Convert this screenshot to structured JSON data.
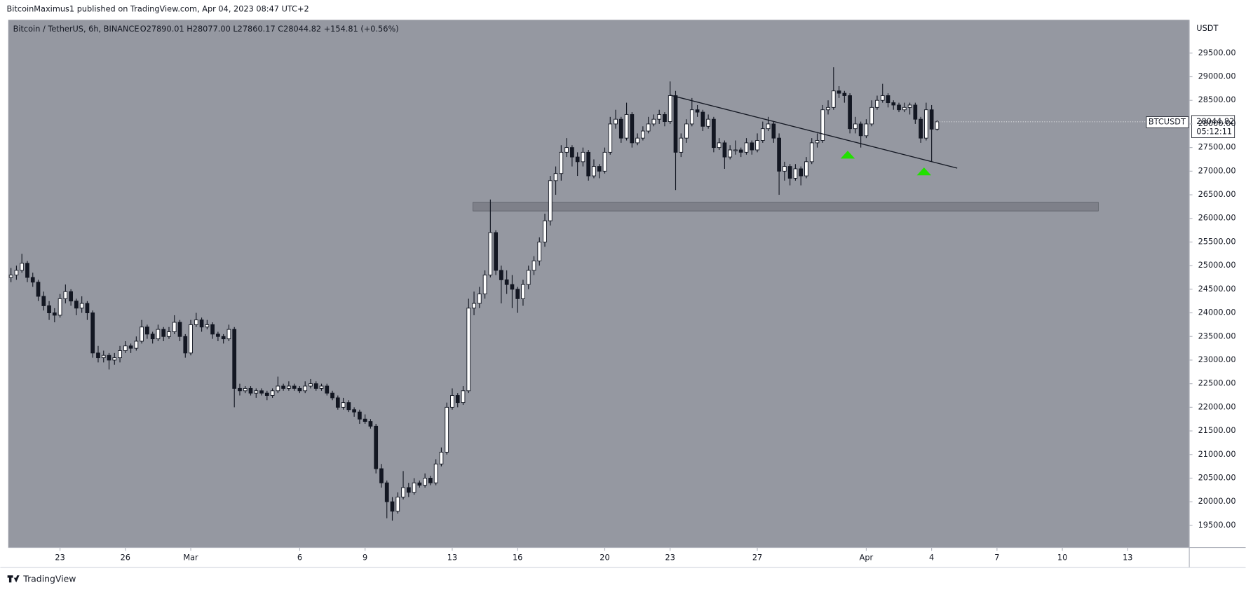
{
  "header": {
    "publisher": "BitcoinMaximus1 published on TradingView.com, Apr 04, 2023 08:47 UTC+2"
  },
  "footer": {
    "brand": "TradingView"
  },
  "chart_data": {
    "type": "candlestick",
    "title": "Bitcoin / TetherUS, 6h, BINANCE",
    "ohlc_text": "O27890.01 H28077.00 L27860.17 C28044.82 +154.81 (+0.56%)",
    "y_axis_label": "USDT",
    "symbol_tag": "BTCUSDT",
    "last_price": {
      "value": 28044.82,
      "label": "28044.82"
    },
    "countdown": "05:12:11",
    "up_color": "#ffffff",
    "down_color": "#131722",
    "background": "#9598a1",
    "xlim": [
      -0.5,
      216.3
    ],
    "ylim": [
      19030,
      30255
    ],
    "xticks": [
      {
        "value": 9,
        "label": "23"
      },
      {
        "value": 21,
        "label": "26"
      },
      {
        "value": 33,
        "label": "Mar"
      },
      {
        "value": 53,
        "label": "6"
      },
      {
        "value": 65,
        "label": "9"
      },
      {
        "value": 81,
        "label": "13"
      },
      {
        "value": 93,
        "label": "16"
      },
      {
        "value": 109,
        "label": "20"
      },
      {
        "value": 121,
        "label": "23"
      },
      {
        "value": 137,
        "label": "27"
      },
      {
        "value": 157,
        "label": "Apr"
      },
      {
        "value": 169,
        "label": "4"
      },
      {
        "value": 181,
        "label": "7"
      },
      {
        "value": 193,
        "label": "10"
      },
      {
        "value": 205,
        "label": "13"
      }
    ],
    "yticks": [
      {
        "value": 19500,
        "label": "19500.00"
      },
      {
        "value": 20000,
        "label": "20000.00"
      },
      {
        "value": 20500,
        "label": "20500.00"
      },
      {
        "value": 21000,
        "label": "21000.00"
      },
      {
        "value": 21500,
        "label": "21500.00"
      },
      {
        "value": 22000,
        "label": "22000.00"
      },
      {
        "value": 22500,
        "label": "22500.00"
      },
      {
        "value": 23000,
        "label": "23000.00"
      },
      {
        "value": 23500,
        "label": "23500.00"
      },
      {
        "value": 24000,
        "label": "24000.00"
      },
      {
        "value": 24500,
        "label": "24500.00"
      },
      {
        "value": 25000,
        "label": "25000.00"
      },
      {
        "value": 25500,
        "label": "25500.00"
      },
      {
        "value": 26000,
        "label": "26000.00"
      },
      {
        "value": 26500,
        "label": "26500.00"
      },
      {
        "value": 27000,
        "label": "27000.00"
      },
      {
        "value": 27500,
        "label": "27500.00"
      },
      {
        "value": 28000,
        "label": "28000.00"
      },
      {
        "value": 28500,
        "label": "28500.00"
      },
      {
        "value": 29000,
        "label": "29000.00"
      },
      {
        "value": 29500,
        "label": "29500.00"
      }
    ],
    "trendline": {
      "x": [
        121,
        173.7
      ],
      "y": [
        28610,
        27064
      ],
      "color": "#131722"
    },
    "zone": {
      "x": [
        84.8,
        199.6
      ],
      "y": [
        26157,
        26342
      ],
      "color": "#6b6e76"
    },
    "markers": {
      "x": [
        153.6,
        167.6
      ],
      "y": [
        27434,
        27080
      ],
      "color": "#22e000"
    },
    "candles": [
      [
        24750,
        24950,
        24650,
        24800
      ],
      [
        24800,
        25000,
        24700,
        24900
      ],
      [
        24900,
        25250,
        24850,
        25050
      ],
      [
        25050,
        25100,
        24650,
        24750
      ],
      [
        24750,
        24850,
        24550,
        24650
      ],
      [
        24650,
        24700,
        24250,
        24350
      ],
      [
        24350,
        24450,
        24050,
        24150
      ],
      [
        24150,
        24250,
        23850,
        24000
      ],
      [
        24000,
        24100,
        23800,
        23950
      ],
      [
        23950,
        24400,
        23900,
        24300
      ],
      [
        24300,
        24600,
        24200,
        24450
      ],
      [
        24450,
        24500,
        24150,
        24250
      ],
      [
        24250,
        24300,
        23950,
        24100
      ],
      [
        24100,
        24350,
        24000,
        24200
      ],
      [
        24200,
        24250,
        23850,
        24000
      ],
      [
        24000,
        24050,
        23050,
        23150
      ],
      [
        23150,
        23300,
        22950,
        23050
      ],
      [
        23050,
        23200,
        22950,
        23100
      ],
      [
        23100,
        23150,
        22800,
        23000
      ],
      [
        23000,
        23150,
        22900,
        23050
      ],
      [
        23050,
        23300,
        22950,
        23200
      ],
      [
        23200,
        23400,
        23150,
        23300
      ],
      [
        23300,
        23350,
        23150,
        23250
      ],
      [
        23250,
        23500,
        23200,
        23400
      ],
      [
        23400,
        23850,
        23350,
        23700
      ],
      [
        23700,
        23750,
        23450,
        23550
      ],
      [
        23550,
        23600,
        23350,
        23450
      ],
      [
        23450,
        23750,
        23400,
        23650
      ],
      [
        23650,
        23700,
        23400,
        23500
      ],
      [
        23500,
        23700,
        23450,
        23600
      ],
      [
        23600,
        23950,
        23550,
        23800
      ],
      [
        23800,
        23850,
        23400,
        23500
      ],
      [
        23500,
        23550,
        23050,
        23150
      ],
      [
        23150,
        23850,
        23100,
        23750
      ],
      [
        23750,
        24000,
        23700,
        23850
      ],
      [
        23850,
        23900,
        23600,
        23700
      ],
      [
        23700,
        23850,
        23650,
        23750
      ],
      [
        23750,
        23800,
        23450,
        23550
      ],
      [
        23550,
        23600,
        23400,
        23500
      ],
      [
        23500,
        23550,
        23350,
        23450
      ],
      [
        23450,
        23750,
        23400,
        23650
      ],
      [
        23650,
        23700,
        22000,
        22400
      ],
      [
        22400,
        22500,
        22250,
        22350
      ],
      [
        22350,
        22450,
        22300,
        22400
      ],
      [
        22400,
        22450,
        22250,
        22300
      ],
      [
        22300,
        22400,
        22200,
        22350
      ],
      [
        22350,
        22400,
        22250,
        22300
      ],
      [
        22300,
        22350,
        22150,
        22250
      ],
      [
        22250,
        22400,
        22200,
        22350
      ],
      [
        22350,
        22650,
        22300,
        22450
      ],
      [
        22450,
        22500,
        22350,
        22400
      ],
      [
        22400,
        22550,
        22350,
        22450
      ],
      [
        22450,
        22500,
        22350,
        22400
      ],
      [
        22400,
        22450,
        22300,
        22350
      ],
      [
        22350,
        22550,
        22300,
        22450
      ],
      [
        22450,
        22600,
        22400,
        22500
      ],
      [
        22500,
        22550,
        22350,
        22400
      ],
      [
        22400,
        22500,
        22350,
        22450
      ],
      [
        22450,
        22500,
        22250,
        22300
      ],
      [
        22300,
        22350,
        22150,
        22200
      ],
      [
        22200,
        22250,
        21950,
        22000
      ],
      [
        22000,
        22200,
        21950,
        22100
      ],
      [
        22100,
        22150,
        21900,
        21950
      ],
      [
        21950,
        22000,
        21800,
        21900
      ],
      [
        21900,
        21950,
        21650,
        21750
      ],
      [
        21750,
        21850,
        21650,
        21700
      ],
      [
        21700,
        21750,
        21550,
        21600
      ],
      [
        21600,
        21650,
        20600,
        20700
      ],
      [
        20700,
        20800,
        20300,
        20400
      ],
      [
        20400,
        20450,
        19650,
        20000
      ],
      [
        20000,
        20100,
        19600,
        19800
      ],
      [
        19800,
        20200,
        19750,
        20100
      ],
      [
        20100,
        20650,
        20050,
        20300
      ],
      [
        20300,
        20400,
        20100,
        20200
      ],
      [
        20200,
        20500,
        20150,
        20400
      ],
      [
        20400,
        20450,
        20300,
        20350
      ],
      [
        20350,
        20600,
        20300,
        20500
      ],
      [
        20500,
        20550,
        20350,
        20400
      ],
      [
        20400,
        20900,
        20350,
        20800
      ],
      [
        20800,
        21150,
        20750,
        21050
      ],
      [
        21050,
        22100,
        21000,
        22000
      ],
      [
        22000,
        22400,
        21950,
        22250
      ],
      [
        22250,
        22300,
        22000,
        22100
      ],
      [
        22100,
        22450,
        22050,
        22350
      ],
      [
        22350,
        24300,
        22300,
        24100
      ],
      [
        24100,
        24450,
        23950,
        24200
      ],
      [
        24200,
        24550,
        24100,
        24400
      ],
      [
        24400,
        24900,
        24300,
        24800
      ],
      [
        24800,
        26400,
        24750,
        25700
      ],
      [
        25700,
        25750,
        24800,
        24900
      ],
      [
        24900,
        25000,
        24200,
        24700
      ],
      [
        24700,
        24900,
        24400,
        24600
      ],
      [
        24600,
        24800,
        24100,
        24500
      ],
      [
        24500,
        24550,
        24000,
        24300
      ],
      [
        24300,
        24700,
        24150,
        24600
      ],
      [
        24600,
        25000,
        24500,
        24900
      ],
      [
        24900,
        25200,
        24800,
        25100
      ],
      [
        25100,
        25600,
        25000,
        25500
      ],
      [
        25500,
        26100,
        25400,
        25950
      ],
      [
        25950,
        26900,
        25850,
        26800
      ],
      [
        26800,
        27100,
        26500,
        26950
      ],
      [
        26950,
        27550,
        26800,
        27400
      ],
      [
        27400,
        27700,
        27300,
        27500
      ],
      [
        27500,
        27550,
        27100,
        27300
      ],
      [
        27300,
        27400,
        26900,
        27200
      ],
      [
        27200,
        27500,
        27100,
        27400
      ],
      [
        27400,
        27450,
        26800,
        26900
      ],
      [
        26900,
        27250,
        26850,
        27100
      ],
      [
        27100,
        27150,
        26850,
        27000
      ],
      [
        27000,
        27500,
        26950,
        27400
      ],
      [
        27400,
        28150,
        27350,
        28000
      ],
      [
        28000,
        28300,
        27900,
        28100
      ],
      [
        28100,
        28150,
        27600,
        27700
      ],
      [
        27700,
        28450,
        27650,
        28200
      ],
      [
        28200,
        28250,
        27500,
        27600
      ],
      [
        27600,
        27800,
        27550,
        27700
      ],
      [
        27700,
        27950,
        27650,
        27850
      ],
      [
        27850,
        28150,
        27800,
        28000
      ],
      [
        28000,
        28200,
        27950,
        28100
      ],
      [
        28100,
        28300,
        28000,
        28200
      ],
      [
        28200,
        28250,
        27950,
        28050
      ],
      [
        28050,
        28900,
        28000,
        28600
      ],
      [
        28600,
        28700,
        26600,
        27400
      ],
      [
        27400,
        27800,
        27300,
        27700
      ],
      [
        27700,
        28100,
        27600,
        28000
      ],
      [
        28000,
        28550,
        27950,
        28300
      ],
      [
        28300,
        28400,
        28150,
        28250
      ],
      [
        28250,
        28300,
        27850,
        27950
      ],
      [
        27950,
        28200,
        27900,
        28100
      ],
      [
        28100,
        28150,
        27400,
        27500
      ],
      [
        27500,
        27700,
        27450,
        27600
      ],
      [
        27600,
        27650,
        27050,
        27300
      ],
      [
        27300,
        27550,
        27250,
        27450
      ],
      [
        27450,
        27650,
        27350,
        27450
      ],
      [
        27450,
        27500,
        27300,
        27400
      ],
      [
        27400,
        27700,
        27350,
        27600
      ],
      [
        27600,
        27650,
        27350,
        27450
      ],
      [
        27450,
        27800,
        27400,
        27650
      ],
      [
        27650,
        28050,
        27600,
        27900
      ],
      [
        27900,
        28150,
        27850,
        28000
      ],
      [
        28000,
        28050,
        27600,
        27700
      ],
      [
        27700,
        27800,
        26500,
        27000
      ],
      [
        27000,
        27200,
        26800,
        27100
      ],
      [
        27100,
        27150,
        26700,
        26850
      ],
      [
        26850,
        27150,
        26800,
        27050
      ],
      [
        27050,
        27100,
        26700,
        26900
      ],
      [
        26900,
        27300,
        26850,
        27200
      ],
      [
        27200,
        27700,
        27150,
        27600
      ],
      [
        27600,
        27800,
        27500,
        27650
      ],
      [
        27650,
        28400,
        27600,
        28300
      ],
      [
        28300,
        28500,
        28200,
        28350
      ],
      [
        28350,
        29200,
        28300,
        28700
      ],
      [
        28700,
        28800,
        28550,
        28650
      ],
      [
        28650,
        28700,
        28450,
        28600
      ],
      [
        28600,
        28650,
        27800,
        27900
      ],
      [
        27900,
        28150,
        27800,
        28000
      ],
      [
        28000,
        28050,
        27500,
        27750
      ],
      [
        27750,
        28100,
        27700,
        28000
      ],
      [
        28000,
        28500,
        27950,
        28350
      ],
      [
        28350,
        28600,
        28300,
        28500
      ],
      [
        28500,
        28850,
        28450,
        28600
      ],
      [
        28600,
        28650,
        28350,
        28450
      ],
      [
        28450,
        28500,
        28300,
        28400
      ],
      [
        28400,
        28450,
        28250,
        28300
      ],
      [
        28300,
        28450,
        28250,
        28350
      ],
      [
        28350,
        28450,
        28200,
        28400
      ],
      [
        28400,
        28450,
        28000,
        28100
      ],
      [
        28100,
        28150,
        27600,
        27700
      ],
      [
        27700,
        28450,
        27650,
        28300
      ],
      [
        28300,
        28400,
        27200,
        27890.01
      ],
      [
        27890.01,
        28077,
        27860.17,
        28044.82
      ]
    ]
  }
}
